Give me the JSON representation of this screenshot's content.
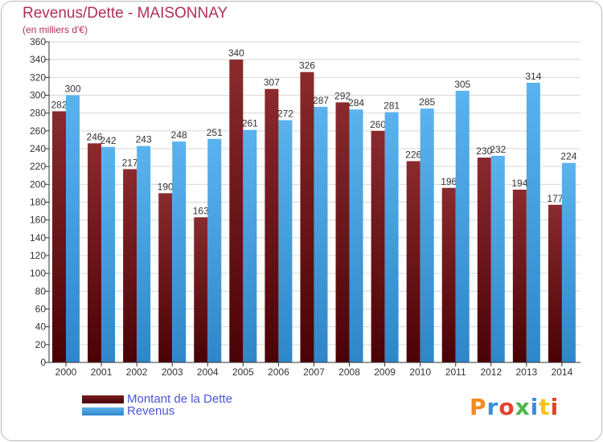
{
  "header": {
    "title": "Revenus/Dette - MAISONNAY",
    "subtitle": "(en milliers d'€)"
  },
  "logo": {
    "text": "Proxiti",
    "letter_colors": [
      "#f08c1e",
      "#3a8fd8",
      "#e8402a",
      "#4db64a",
      "#3a8fd8",
      "#f5c21b",
      "#e8402a"
    ]
  },
  "colors": {
    "dette": "#7a1c20",
    "revenus": "#3c9fe0",
    "grid": "#d8d8d8",
    "axis": "#333333"
  },
  "chart_data": {
    "type": "bar",
    "categories": [
      "2000",
      "2001",
      "2002",
      "2003",
      "2004",
      "2005",
      "2006",
      "2007",
      "2008",
      "2009",
      "2010",
      "2011",
      "2012",
      "2013",
      "2014"
    ],
    "series": [
      {
        "name": "Montant de la Dette",
        "color": "#7a1c20",
        "values": [
          282,
          246,
          217,
          190,
          163,
          340,
          307,
          326,
          292,
          260,
          226,
          196,
          230,
          194,
          177
        ]
      },
      {
        "name": "Revenus",
        "color": "#3c9fe0",
        "values": [
          300,
          242,
          243,
          248,
          251,
          261,
          272,
          287,
          284,
          281,
          285,
          305,
          232,
          314,
          224
        ]
      }
    ],
    "ylim": [
      0,
      360
    ],
    "yticks": [
      0,
      20,
      40,
      60,
      80,
      100,
      120,
      140,
      160,
      180,
      200,
      220,
      240,
      260,
      280,
      300,
      320,
      340,
      360
    ],
    "grid": true,
    "legend_position": "bottom-left"
  }
}
